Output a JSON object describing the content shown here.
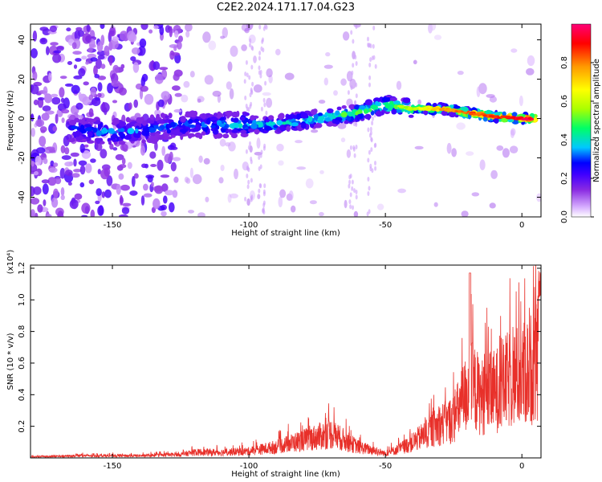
{
  "title": "C2E2.2024.171.17.04.G23",
  "chart_data": [
    {
      "type": "heatmap",
      "xlabel": "Height of straight line (km)",
      "ylabel": "Frequency (Hz)",
      "xlim": [
        -180,
        7
      ],
      "ylim": [
        -50,
        48
      ],
      "x_ticks": [
        -150,
        -100,
        -50,
        0
      ],
      "y_ticks": [
        -40,
        -20,
        0,
        20,
        40
      ],
      "colorbar": {
        "label": "Normalized spectral amplitude",
        "range": [
          0,
          1
        ],
        "ticks": [
          0.0,
          0.2,
          0.4,
          0.6,
          0.8
        ],
        "colors": [
          "#ffffff",
          "#d8b0ff",
          "#8a2be2",
          "#4000ff",
          "#0000ff",
          "#00c8ff",
          "#00ff66",
          "#aaff00",
          "#ffff00",
          "#ff9900",
          "#ff0000",
          "#ff0077"
        ]
      },
      "ridge": {
        "x": [
          -160,
          -150,
          -140,
          -130,
          -120,
          -110,
          -100,
          -90,
          -80,
          -70,
          -60,
          -50,
          -40,
          -30,
          -20,
          -10,
          0,
          5
        ],
        "frequency": [
          -6,
          -7,
          -6,
          -4,
          -3,
          -3,
          -3,
          -3,
          -1,
          1,
          3,
          7,
          5,
          5,
          3,
          1,
          0,
          0
        ],
        "amplitude": [
          0.3,
          0.35,
          0.3,
          0.3,
          0.3,
          0.35,
          0.4,
          0.4,
          0.4,
          0.45,
          0.5,
          0.5,
          0.55,
          0.7,
          0.8,
          0.8,
          0.9,
          0.9
        ]
      }
    },
    {
      "type": "line",
      "xlabel": "Height of straight line (km)",
      "ylabel": "SNR (10 * v/v)",
      "y_multiplier": "(x10⁴)",
      "xlim": [
        -180,
        7
      ],
      "ylim": [
        0,
        1.22
      ],
      "x_ticks": [
        -150,
        -100,
        -50,
        0
      ],
      "y_ticks": [
        0.2,
        0.4,
        0.6,
        0.8,
        1.0,
        1.2
      ],
      "color": "#e8302a",
      "envelope": {
        "x": [
          -180,
          -160,
          -140,
          -125,
          -120,
          -110,
          -100,
          -90,
          -80,
          -70,
          -60,
          -50,
          -45,
          -40,
          -35,
          -30,
          -25,
          -20,
          -18,
          -15,
          -10,
          -5,
          0,
          3,
          5,
          7
        ],
        "y": [
          0.01,
          0.02,
          0.02,
          0.03,
          0.05,
          0.05,
          0.06,
          0.1,
          0.16,
          0.22,
          0.1,
          0.04,
          0.08,
          0.14,
          0.22,
          0.3,
          0.35,
          0.6,
          0.65,
          0.55,
          0.6,
          0.7,
          0.75,
          0.8,
          0.85,
          0.95
        ]
      }
    }
  ]
}
